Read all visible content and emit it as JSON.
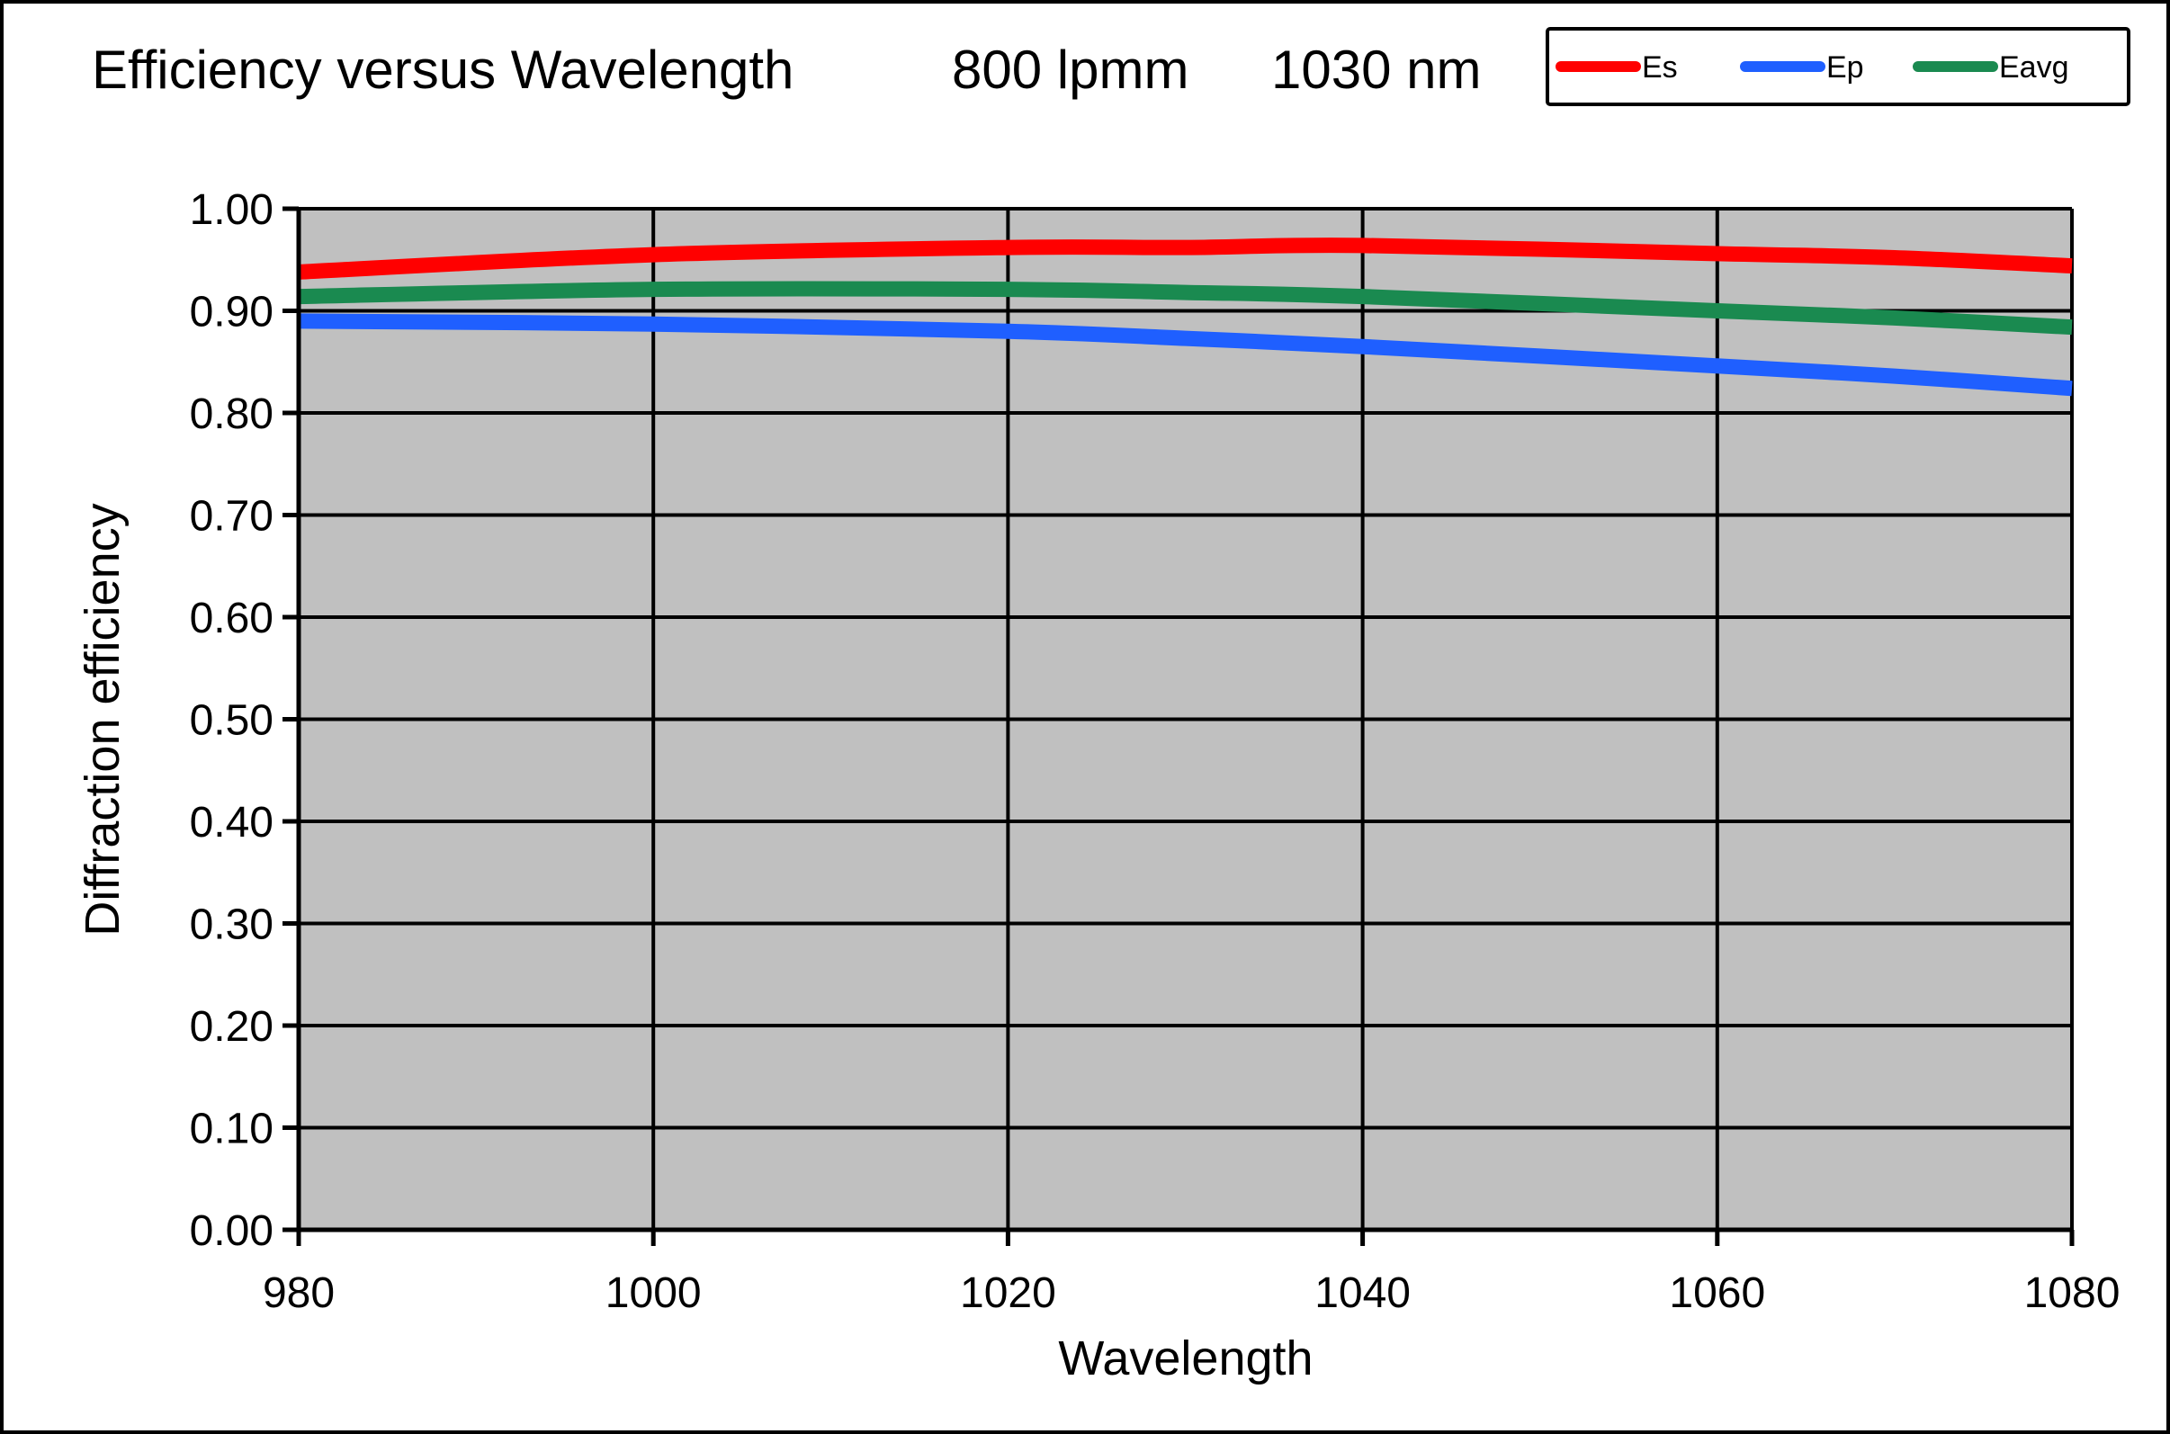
{
  "chart_data": {
    "type": "line",
    "title": "Efficiency versus Wavelength",
    "title_extra": [
      "800 lpmm",
      "1030 nm"
    ],
    "xlabel": "Wavelength",
    "ylabel": "Diffraction efficiency",
    "xlim": [
      980,
      1080
    ],
    "ylim": [
      0.0,
      1.0
    ],
    "x_ticks": [
      980,
      1000,
      1020,
      1040,
      1060,
      1080
    ],
    "x_tick_labels": [
      "980",
      "1000",
      "1020",
      "1040",
      "1060",
      "1080"
    ],
    "y_ticks": [
      0.0,
      0.1,
      0.2,
      0.3,
      0.4,
      0.5,
      0.6,
      0.7,
      0.8,
      0.9,
      1.0
    ],
    "y_tick_labels": [
      "0.00",
      "0.10",
      "0.20",
      "0.30",
      "0.40",
      "0.50",
      "0.60",
      "0.70",
      "0.80",
      "0.90",
      "1.00"
    ],
    "grid": true,
    "plot_background": "#c0c0c0",
    "legend_position": "top-right",
    "x": [
      980,
      1000,
      1020,
      1030,
      1040,
      1060,
      1070,
      1080
    ],
    "series": [
      {
        "name": "Es",
        "color": "#ff0000",
        "values": [
          0.938,
          0.955,
          0.962,
          0.962,
          0.964,
          0.956,
          0.952,
          0.944
        ]
      },
      {
        "name": "Ep",
        "color": "#1f5fff",
        "values": [
          0.89,
          0.887,
          0.88,
          0.873,
          0.865,
          0.846,
          0.836,
          0.824
        ]
      },
      {
        "name": "Eavg",
        "color": "#1a8a50",
        "values": [
          0.914,
          0.921,
          0.921,
          0.918,
          0.914,
          0.9,
          0.893,
          0.884
        ]
      }
    ]
  }
}
